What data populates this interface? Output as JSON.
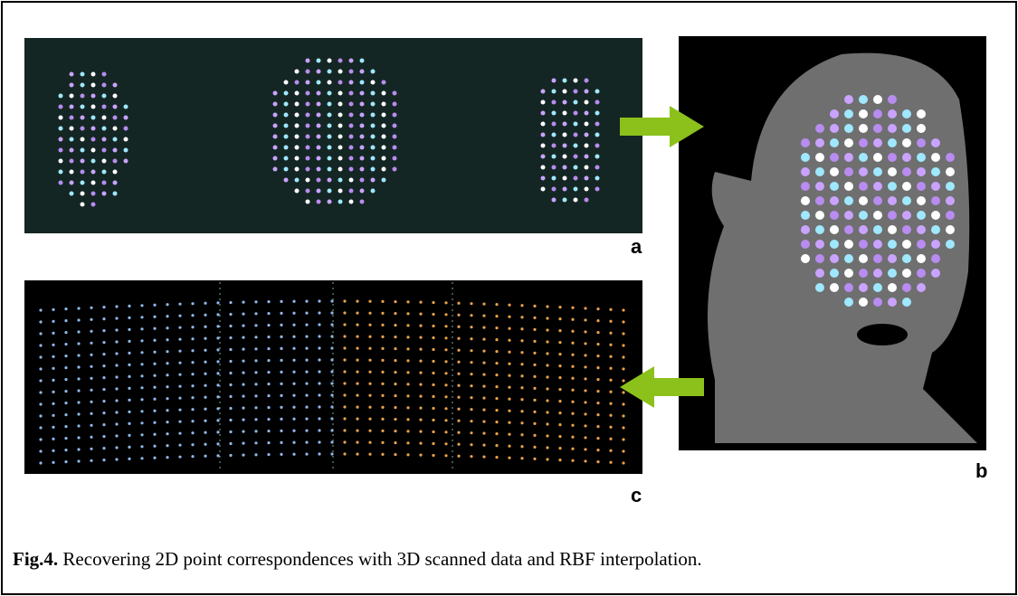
{
  "figure": {
    "panels": [
      {
        "label": "a"
      },
      {
        "label": "b"
      },
      {
        "label": "c"
      }
    ],
    "caption": {
      "number": "Fig.4.",
      "text": "Recovering 2D point correspondences with 3D scanned data and RBF interpolation."
    }
  }
}
